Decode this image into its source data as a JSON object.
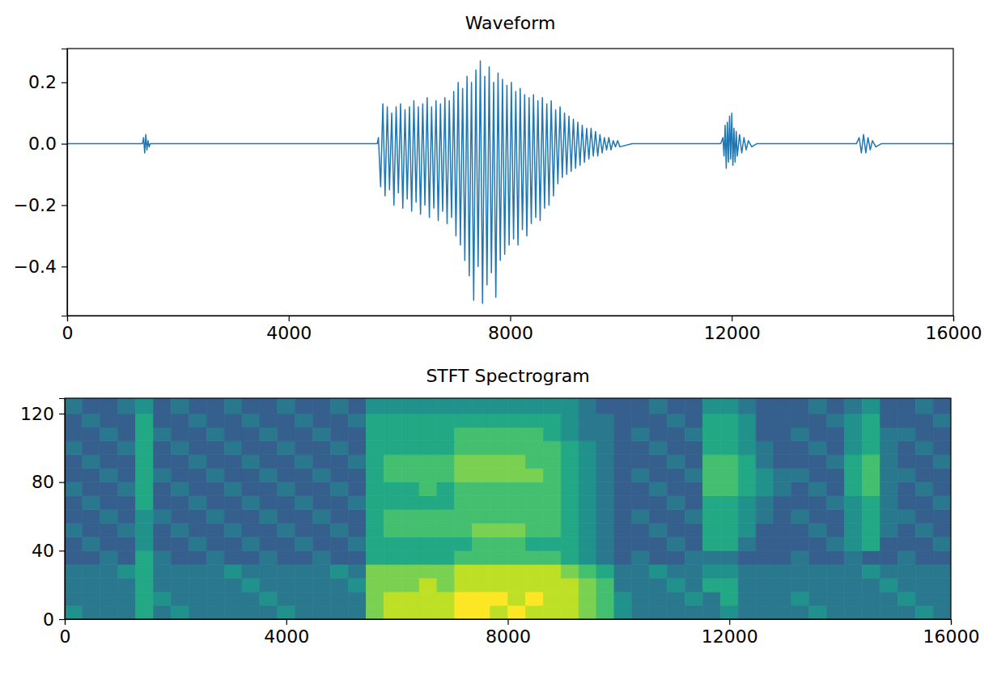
{
  "chart_data": [
    {
      "type": "line",
      "title": "Waveform",
      "color": "#1f77b4",
      "xlim": [
        0,
        16000
      ],
      "xticks": [
        0,
        4000,
        8000,
        12000,
        16000
      ],
      "ylim": [
        -0.56,
        0.31
      ],
      "yticks": [
        {
          "value": -0.4,
          "label": "−0.4"
        },
        {
          "value": -0.2,
          "label": "−0.2"
        },
        {
          "value": 0,
          "label": "0.0"
        },
        0.2
      ],
      "x": [
        0,
        400,
        800,
        1200,
        1360,
        1380,
        1400,
        1420,
        1440,
        1460,
        1480,
        1500,
        2000,
        3000,
        4000,
        5000,
        5600,
        5620,
        5660,
        5700,
        5740,
        5780,
        5820,
        5860,
        5900,
        5940,
        5980,
        6020,
        6060,
        6100,
        6140,
        6180,
        6220,
        6260,
        6300,
        6340,
        6380,
        6420,
        6460,
        6500,
        6540,
        6580,
        6620,
        6660,
        6700,
        6740,
        6780,
        6820,
        6860,
        6900,
        6940,
        6980,
        7020,
        7060,
        7100,
        7140,
        7180,
        7220,
        7260,
        7300,
        7340,
        7380,
        7420,
        7460,
        7500,
        7540,
        7580,
        7620,
        7660,
        7700,
        7740,
        7780,
        7820,
        7860,
        7900,
        7940,
        7980,
        8020,
        8060,
        8100,
        8140,
        8180,
        8220,
        8260,
        8300,
        8340,
        8380,
        8420,
        8460,
        8500,
        8540,
        8580,
        8620,
        8660,
        8700,
        8740,
        8780,
        8820,
        8860,
        8900,
        8940,
        8980,
        9020,
        9060,
        9100,
        9140,
        9180,
        9220,
        9260,
        9300,
        9340,
        9380,
        9420,
        9460,
        9500,
        9540,
        9580,
        9620,
        9660,
        9700,
        9740,
        9780,
        9820,
        9860,
        9900,
        9940,
        9980,
        10200,
        11000,
        11800,
        11840,
        11860,
        11880,
        11900,
        11920,
        11940,
        11960,
        11980,
        12000,
        12020,
        12040,
        12060,
        12080,
        12100,
        12140,
        12180,
        12220,
        12260,
        12300,
        12360,
        12450,
        13000,
        14250,
        14300,
        14340,
        14380,
        14420,
        14460,
        14500,
        14540,
        14600,
        14700,
        15500,
        16000
      ],
      "values": [
        0,
        0,
        0,
        0,
        0,
        0.02,
        -0.03,
        0.03,
        -0.02,
        0.01,
        -0.01,
        0,
        0,
        0,
        0,
        0,
        0,
        0.02,
        -0.14,
        0.13,
        -0.17,
        0.12,
        -0.15,
        0.1,
        -0.2,
        0.12,
        -0.16,
        0.13,
        -0.21,
        0.11,
        -0.18,
        0.12,
        -0.22,
        0.14,
        -0.19,
        0.12,
        -0.23,
        0.13,
        -0.2,
        0.15,
        -0.24,
        0.12,
        -0.21,
        0.14,
        -0.25,
        0.13,
        -0.22,
        0.15,
        -0.26,
        0.14,
        -0.24,
        0.17,
        -0.3,
        0.2,
        -0.33,
        0.18,
        -0.38,
        0.22,
        -0.43,
        0.2,
        -0.51,
        0.24,
        -0.4,
        0.27,
        -0.52,
        0.22,
        -0.46,
        0.25,
        -0.42,
        0.2,
        -0.5,
        0.23,
        -0.38,
        0.21,
        -0.36,
        0.19,
        -0.33,
        0.2,
        -0.31,
        0.17,
        -0.33,
        0.18,
        -0.28,
        0.16,
        -0.3,
        0.15,
        -0.26,
        0.16,
        -0.24,
        0.14,
        -0.25,
        0.15,
        -0.21,
        0.13,
        -0.2,
        0.14,
        -0.17,
        0.11,
        -0.13,
        0.12,
        -0.11,
        0.1,
        -0.1,
        0.09,
        -0.09,
        0.08,
        -0.08,
        0.07,
        -0.07,
        0.06,
        -0.06,
        0.05,
        -0.05,
        0.05,
        -0.04,
        0.04,
        -0.04,
        0.03,
        -0.03,
        0.02,
        -0.02,
        0.02,
        -0.02,
        0.01,
        -0.01,
        0.01,
        -0.01,
        0,
        0,
        0,
        0.02,
        -0.04,
        0.06,
        -0.08,
        0.07,
        -0.06,
        0.09,
        -0.05,
        0.1,
        -0.07,
        0.05,
        -0.06,
        0.04,
        -0.04,
        0.03,
        -0.03,
        0.02,
        -0.02,
        0.01,
        -0.01,
        0,
        0,
        0,
        0.02,
        -0.03,
        0.03,
        -0.03,
        0.02,
        -0.02,
        0.01,
        -0.01,
        0,
        0,
        0
      ]
    },
    {
      "type": "heatmap",
      "title": "STFT Spectrogram",
      "color": "viridis",
      "xlim": [
        0,
        16000
      ],
      "xticks": [
        0,
        4000,
        8000,
        12000,
        16000
      ],
      "ylim": [
        0,
        129
      ],
      "yticks": [
        0,
        40,
        80,
        120
      ],
      "zlim": [
        0,
        10
      ],
      "x_bins": [
        0,
        320,
        640,
        960,
        1280,
        1600,
        1920,
        2240,
        2560,
        2880,
        3200,
        3520,
        3840,
        4160,
        4480,
        4800,
        5120,
        5440,
        5760,
        6080,
        6400,
        6720,
        7040,
        7360,
        7680,
        8000,
        8320,
        8640,
        8960,
        9280,
        9600,
        9920,
        10240,
        10560,
        10880,
        11200,
        11520,
        11840,
        12160,
        12480,
        12800,
        13120,
        13440,
        13760,
        14080,
        14400,
        14720,
        15040,
        15360,
        15680,
        16000
      ],
      "y_bins": [
        0,
        8,
        16,
        24,
        32,
        40,
        48,
        56,
        64,
        72,
        80,
        88,
        96,
        104,
        112,
        120,
        129
      ],
      "cells": [
        [
          5,
          4,
          4,
          4,
          6,
          4,
          5,
          4,
          4,
          4,
          4,
          4,
          5,
          4,
          4,
          4,
          4,
          8,
          9,
          9,
          9,
          9,
          10,
          10,
          9,
          10,
          9,
          9,
          9,
          8,
          7,
          5,
          4,
          4,
          4,
          4,
          4,
          5,
          4,
          4,
          4,
          4,
          5,
          4,
          4,
          4,
          4,
          4,
          5,
          4
        ],
        [
          4,
          4,
          4,
          4,
          6,
          5,
          4,
          4,
          4,
          4,
          4,
          5,
          4,
          4,
          4,
          4,
          4,
          8,
          9,
          9,
          9,
          9,
          10,
          10,
          10,
          9,
          10,
          9,
          9,
          8,
          7,
          5,
          4,
          4,
          4,
          5,
          4,
          6,
          4,
          4,
          4,
          5,
          4,
          4,
          4,
          4,
          4,
          5,
          4,
          4
        ],
        [
          4,
          4,
          4,
          4,
          6,
          4,
          4,
          4,
          4,
          4,
          5,
          4,
          4,
          4,
          4,
          4,
          5,
          8,
          8,
          8,
          9,
          8,
          9,
          9,
          9,
          9,
          9,
          9,
          9,
          8,
          7,
          4,
          4,
          4,
          5,
          4,
          6,
          6,
          4,
          4,
          4,
          4,
          4,
          4,
          4,
          4,
          5,
          4,
          4,
          4
        ],
        [
          4,
          4,
          4,
          5,
          6,
          4,
          4,
          4,
          4,
          5,
          4,
          4,
          4,
          4,
          4,
          5,
          4,
          8,
          8,
          8,
          8,
          8,
          9,
          9,
          9,
          9,
          9,
          9,
          8,
          7,
          6,
          4,
          4,
          5,
          4,
          4,
          5,
          5,
          4,
          4,
          4,
          4,
          4,
          4,
          4,
          5,
          4,
          4,
          4,
          4
        ],
        [
          3,
          3,
          4,
          3,
          6,
          4,
          3,
          3,
          4,
          3,
          3,
          4,
          3,
          3,
          4,
          3,
          3,
          6,
          6,
          6,
          6,
          6,
          7,
          7,
          7,
          7,
          7,
          7,
          6,
          5,
          4,
          3,
          4,
          3,
          3,
          4,
          4,
          4,
          3,
          3,
          3,
          4,
          3,
          3,
          4,
          3,
          3,
          4,
          3,
          3
        ],
        [
          3,
          4,
          3,
          3,
          5,
          3,
          3,
          4,
          3,
          3,
          4,
          3,
          3,
          4,
          3,
          3,
          4,
          6,
          6,
          6,
          6,
          6,
          6,
          7,
          7,
          7,
          6,
          6,
          6,
          5,
          4,
          3,
          3,
          3,
          4,
          3,
          6,
          6,
          4,
          3,
          3,
          3,
          3,
          4,
          5,
          6,
          3,
          3,
          3,
          4
        ],
        [
          4,
          3,
          3,
          4,
          5,
          3,
          4,
          3,
          3,
          4,
          3,
          3,
          4,
          3,
          3,
          4,
          3,
          6,
          7,
          7,
          7,
          7,
          7,
          8,
          8,
          8,
          7,
          7,
          6,
          5,
          4,
          3,
          3,
          4,
          3,
          3,
          6,
          6,
          5,
          3,
          3,
          3,
          4,
          3,
          5,
          6,
          4,
          3,
          4,
          3
        ],
        [
          3,
          3,
          4,
          3,
          5,
          4,
          3,
          3,
          4,
          3,
          3,
          4,
          3,
          3,
          4,
          3,
          3,
          6,
          7,
          7,
          7,
          7,
          7,
          7,
          7,
          7,
          7,
          7,
          6,
          5,
          4,
          3,
          4,
          3,
          3,
          4,
          6,
          6,
          5,
          4,
          3,
          4,
          3,
          3,
          5,
          6,
          4,
          4,
          3,
          3
        ],
        [
          3,
          4,
          3,
          3,
          6,
          3,
          3,
          4,
          3,
          3,
          4,
          3,
          3,
          4,
          3,
          3,
          4,
          6,
          6,
          6,
          6,
          6,
          7,
          7,
          7,
          7,
          7,
          7,
          6,
          5,
          4,
          3,
          3,
          3,
          4,
          3,
          6,
          6,
          5,
          4,
          3,
          3,
          3,
          4,
          5,
          6,
          4,
          3,
          3,
          4
        ],
        [
          4,
          3,
          3,
          4,
          6,
          3,
          4,
          3,
          3,
          4,
          3,
          3,
          4,
          3,
          3,
          4,
          3,
          6,
          6,
          6,
          7,
          6,
          7,
          7,
          7,
          7,
          7,
          7,
          6,
          5,
          4,
          3,
          3,
          4,
          3,
          3,
          7,
          7,
          6,
          5,
          4,
          3,
          4,
          3,
          6,
          7,
          4,
          3,
          4,
          3
        ],
        [
          3,
          3,
          4,
          3,
          6,
          4,
          3,
          3,
          4,
          3,
          3,
          4,
          3,
          3,
          4,
          3,
          3,
          6,
          7,
          7,
          7,
          7,
          8,
          8,
          8,
          8,
          8,
          7,
          6,
          5,
          4,
          3,
          4,
          3,
          3,
          4,
          7,
          7,
          6,
          5,
          4,
          4,
          3,
          3,
          6,
          7,
          4,
          4,
          3,
          3
        ],
        [
          3,
          4,
          3,
          3,
          6,
          3,
          3,
          4,
          3,
          3,
          4,
          3,
          3,
          4,
          3,
          3,
          4,
          6,
          7,
          7,
          7,
          7,
          8,
          8,
          8,
          8,
          7,
          7,
          6,
          5,
          4,
          3,
          3,
          3,
          4,
          3,
          7,
          7,
          6,
          4,
          3,
          3,
          3,
          4,
          6,
          7,
          4,
          3,
          3,
          4
        ],
        [
          4,
          3,
          3,
          4,
          6,
          3,
          4,
          3,
          3,
          4,
          3,
          3,
          4,
          3,
          3,
          4,
          3,
          6,
          6,
          6,
          6,
          6,
          7,
          7,
          7,
          7,
          7,
          7,
          6,
          5,
          4,
          3,
          3,
          4,
          3,
          3,
          6,
          6,
          5,
          4,
          3,
          3,
          4,
          3,
          5,
          6,
          4,
          3,
          4,
          3
        ],
        [
          3,
          3,
          4,
          3,
          6,
          4,
          3,
          3,
          4,
          3,
          3,
          4,
          3,
          3,
          4,
          3,
          3,
          6,
          6,
          6,
          6,
          6,
          7,
          7,
          7,
          7,
          7,
          6,
          5,
          4,
          4,
          3,
          4,
          3,
          3,
          4,
          6,
          6,
          5,
          3,
          3,
          4,
          3,
          3,
          5,
          6,
          4,
          4,
          3,
          3
        ],
        [
          3,
          4,
          3,
          3,
          6,
          3,
          3,
          4,
          3,
          3,
          4,
          3,
          3,
          4,
          3,
          3,
          4,
          6,
          6,
          6,
          6,
          6,
          6,
          6,
          6,
          6,
          6,
          6,
          5,
          4,
          4,
          3,
          3,
          3,
          4,
          3,
          6,
          6,
          5,
          3,
          3,
          3,
          3,
          4,
          5,
          6,
          3,
          3,
          3,
          4
        ],
        [
          4,
          3,
          3,
          4,
          5,
          3,
          4,
          3,
          3,
          4,
          3,
          3,
          4,
          3,
          3,
          4,
          3,
          5,
          5,
          5,
          5,
          5,
          5,
          5,
          5,
          5,
          5,
          5,
          5,
          4,
          3,
          3,
          3,
          4,
          3,
          3,
          5,
          5,
          4,
          3,
          3,
          3,
          4,
          3,
          4,
          5,
          3,
          3,
          4,
          3
        ]
      ]
    }
  ]
}
